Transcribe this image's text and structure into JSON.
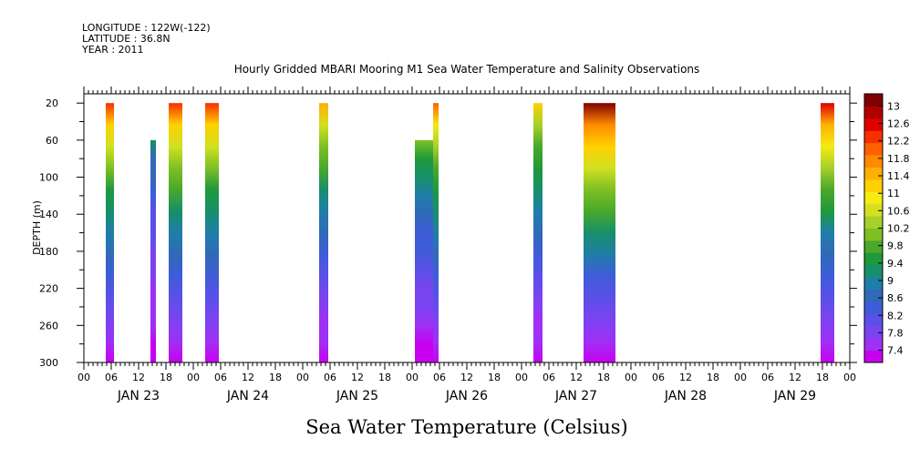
{
  "header": {
    "longitude": "LONGITUDE : 122W(-122)",
    "latitude": "LATITUDE : 36.8N",
    "year": "YEAR : 2011"
  },
  "chart_data": {
    "type": "heatmap",
    "title": "Hourly Gridded MBARI Mooring M1 Sea Water Temperature and Salinity Observations",
    "xlabel": "Sea Water Temperature (Celsius)",
    "ylabel": "DEPTH (m)",
    "x_unit": "hours since JAN 23 00:00",
    "xlim": [
      0,
      168
    ],
    "ylim": [
      300,
      10
    ],
    "y_ticks": [
      20,
      60,
      100,
      140,
      180,
      220,
      260,
      300
    ],
    "x_tick_labels": [
      "00",
      "06",
      "12",
      "18",
      "00",
      "06",
      "12",
      "18",
      "00",
      "06",
      "12",
      "18",
      "00",
      "06",
      "12",
      "18",
      "00",
      "06",
      "12",
      "18",
      "00",
      "06",
      "12",
      "18",
      "00",
      "06",
      "12",
      "18",
      "00"
    ],
    "day_labels": [
      "JAN 23",
      "JAN 24",
      "JAN 25",
      "JAN 26",
      "JAN 27",
      "JAN 28",
      "JAN 29"
    ],
    "colorbar": {
      "levels": [
        7.4,
        7.8,
        8.2,
        8.6,
        9,
        9.4,
        9.8,
        10.2,
        10.6,
        11,
        11.4,
        11.8,
        12.2,
        12.6,
        13
      ],
      "colors": [
        "#c800f0",
        "#9f30f5",
        "#7a44f0",
        "#5a50e8",
        "#3f5cd8",
        "#2f6ab8",
        "#1f7ea8",
        "#178f6a",
        "#1f9a3a",
        "#4aa82a",
        "#7ec024",
        "#a8d02a",
        "#d2e020",
        "#f5ea12",
        "#ffd000",
        "#ffb000",
        "#ff8a00",
        "#ff6000",
        "#f83000",
        "#e00000",
        "#b00000",
        "#800000"
      ]
    },
    "data_columns": [
      {
        "x_start": 4.8,
        "x_end": 6.6,
        "top_depth": 20,
        "surface_temp": 12.0
      },
      {
        "x_start": 14.6,
        "x_end": 15.8,
        "top_depth": 60,
        "surface_temp": 9.3
      },
      {
        "x_start": 18.6,
        "x_end": 21.6,
        "top_depth": 20,
        "surface_temp": 12.2
      },
      {
        "x_start": 26.6,
        "x_end": 29.6,
        "top_depth": 20,
        "surface_temp": 12.0
      },
      {
        "x_start": 51.6,
        "x_end": 53.6,
        "top_depth": 20,
        "surface_temp": 11.4
      },
      {
        "x_start": 72.6,
        "x_end": 76.6,
        "top_depth": 60,
        "surface_temp": 10.2
      },
      {
        "x_start": 76.6,
        "x_end": 77.8,
        "top_depth": 20,
        "surface_temp": 11.8
      },
      {
        "x_start": 98.6,
        "x_end": 100.6,
        "top_depth": 20,
        "surface_temp": 11.2
      },
      {
        "x_start": 109.6,
        "x_end": 116.6,
        "top_depth": 20,
        "surface_temp": 12.9
      },
      {
        "x_start": 161.6,
        "x_end": 164.6,
        "top_depth": 20,
        "surface_temp": 12.4
      }
    ]
  }
}
